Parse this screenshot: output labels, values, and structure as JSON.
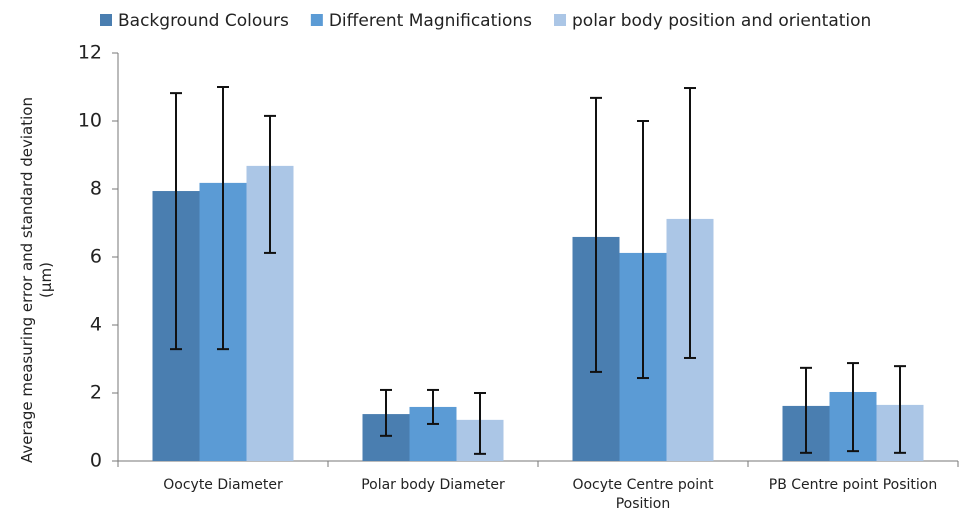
{
  "chart_data": {
    "type": "bar",
    "ylabel": "Average measuring error and standard deviation\n(µm)",
    "categories": [
      "Oocyte  Diameter",
      "Polar body Diameter",
      "Oocyte Centre point\nPosition",
      "PB  Centre point Position"
    ],
    "series": [
      {
        "name": "Background Colours",
        "color": "#4a7eb0",
        "values": [
          7.94,
          1.38,
          6.59,
          1.62
        ],
        "err_minus": [
          4.65,
          0.64,
          3.97,
          1.38
        ],
        "err_plus": [
          2.88,
          0.71,
          4.09,
          1.12
        ]
      },
      {
        "name": "Different Magnifications",
        "color": "#5b9bd5",
        "values": [
          8.18,
          1.59,
          6.12,
          2.03
        ],
        "err_minus": [
          4.89,
          0.5,
          3.68,
          1.74
        ],
        "err_plus": [
          2.82,
          0.5,
          3.88,
          0.85
        ]
      },
      {
        "name": "polar body position and orientation",
        "color": "#abc6e6",
        "values": [
          8.68,
          1.21,
          7.12,
          1.65
        ],
        "err_minus": [
          2.56,
          1.0,
          4.09,
          1.41
        ],
        "err_plus": [
          1.47,
          0.79,
          3.85,
          1.14
        ]
      }
    ],
    "ylim": [
      0,
      12
    ],
    "yticks": [
      0,
      2,
      4,
      6,
      8,
      10,
      12
    ],
    "grid": false,
    "legend": "top"
  }
}
